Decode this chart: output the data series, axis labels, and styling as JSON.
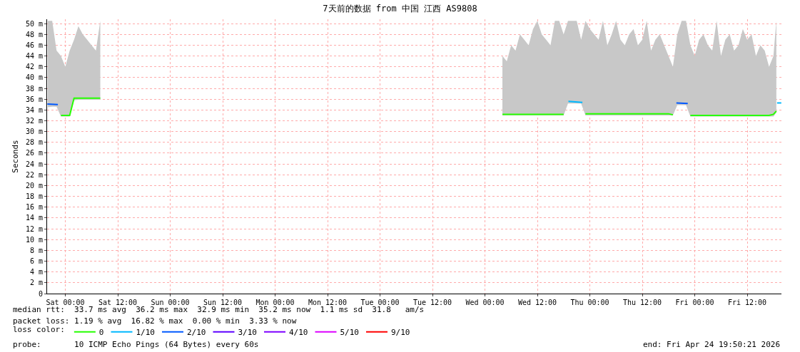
{
  "chart_data": {
    "type": "line",
    "title": "7天前的数据 from 中国 江西 AS9808",
    "ylabel": "Seconds",
    "xlim": [
      "2026-04-17T19:50",
      "2026-04-24T19:50"
    ],
    "ylim": [
      0,
      50.8
    ],
    "xticks": [
      {
        "value": "2026-04-18T00:00",
        "label": "Sat 00:00"
      },
      {
        "value": "2026-04-18T12:00",
        "label": "Sat 12:00"
      },
      {
        "value": "2026-04-19T00:00",
        "label": "Sun 00:00"
      },
      {
        "value": "2026-04-19T12:00",
        "label": "Sun 12:00"
      },
      {
        "value": "2026-04-20T00:00",
        "label": "Mon 00:00"
      },
      {
        "value": "2026-04-20T12:00",
        "label": "Mon 12:00"
      },
      {
        "value": "2026-04-21T00:00",
        "label": "Tue 00:00"
      },
      {
        "value": "2026-04-21T12:00",
        "label": "Tue 12:00"
      },
      {
        "value": "2026-04-22T00:00",
        "label": "Wed 00:00"
      },
      {
        "value": "2026-04-22T12:00",
        "label": "Wed 12:00"
      },
      {
        "value": "2026-04-23T00:00",
        "label": "Thu 00:00"
      },
      {
        "value": "2026-04-23T12:00",
        "label": "Thu 12:00"
      },
      {
        "value": "2026-04-24T00:00",
        "label": "Fri 00:00"
      },
      {
        "value": "2026-04-24T12:00",
        "label": "Fri 12:00"
      }
    ],
    "yticks": [
      0,
      {
        "value": 2,
        "label": "2 m"
      },
      {
        "value": 4,
        "label": "4 m"
      },
      {
        "value": 6,
        "label": "6 m"
      },
      {
        "value": 8,
        "label": "8 m"
      },
      {
        "value": 10,
        "label": "10 m"
      },
      {
        "value": 12,
        "label": "12 m"
      },
      {
        "value": 14,
        "label": "14 m"
      },
      {
        "value": 16,
        "label": "16 m"
      },
      {
        "value": 18,
        "label": "18 m"
      },
      {
        "value": 20,
        "label": "20 m"
      },
      {
        "value": 22,
        "label": "22 m"
      },
      {
        "value": 24,
        "label": "24 m"
      },
      {
        "value": 26,
        "label": "26 m"
      },
      {
        "value": 28,
        "label": "28 m"
      },
      {
        "value": 30,
        "label": "30 m"
      },
      {
        "value": 32,
        "label": "32 m"
      },
      {
        "value": 34,
        "label": "34 m"
      },
      {
        "value": 36,
        "label": "36 m"
      },
      {
        "value": 38,
        "label": "38 m"
      },
      {
        "value": 40,
        "label": "40 m"
      },
      {
        "value": 42,
        "label": "42 m"
      },
      {
        "value": 44,
        "label": "44 m"
      },
      {
        "value": 46,
        "label": "46 m"
      },
      {
        "value": 48,
        "label": "48 m"
      },
      {
        "value": 50,
        "label": "50 m"
      }
    ],
    "grid": true,
    "legend": "bottom",
    "legend_title": "loss color:",
    "marker": "none",
    "line_style": "solid",
    "series": [
      {
        "name": "0",
        "color": "#26ff00",
        "x": [
          "2026-04-17T20:00",
          "2026-04-17T21:00",
          "2026-04-17T22:00",
          "2026-04-17T23:00",
          "2026-04-18T00:00",
          "2026-04-18T01:00",
          "2026-04-18T02:00",
          "2026-04-18T03:00",
          "2026-04-18T04:00",
          "2026-04-18T05:00",
          "2026-04-18T06:00",
          "2026-04-18T07:00",
          "2026-04-18T08:00",
          "2026-04-20T02:00",
          "2026-04-22T04:00",
          "2026-04-22T05:00",
          "2026-04-22T06:00",
          "2026-04-22T07:00",
          "2026-04-22T08:00",
          "2026-04-22T09:00",
          "2026-04-22T10:00",
          "2026-04-22T11:00",
          "2026-04-22T12:00",
          "2026-04-22T13:00",
          "2026-04-22T14:00",
          "2026-04-22T15:00",
          "2026-04-22T16:00",
          "2026-04-22T17:00",
          "2026-04-22T18:00",
          "2026-04-22T19:00",
          "2026-04-22T20:00",
          "2026-04-22T21:00",
          "2026-04-22T22:00",
          "2026-04-22T23:00",
          "2026-04-23T00:00",
          "2026-04-23T01:00",
          "2026-04-23T02:00",
          "2026-04-23T03:00",
          "2026-04-23T04:00",
          "2026-04-23T05:00",
          "2026-04-23T06:00",
          "2026-04-23T07:00",
          "2026-04-23T08:00",
          "2026-04-23T09:00",
          "2026-04-23T10:00",
          "2026-04-23T11:00",
          "2026-04-23T12:00",
          "2026-04-23T13:00",
          "2026-04-23T14:00",
          "2026-04-23T15:00",
          "2026-04-23T16:00",
          "2026-04-23T17:00",
          "2026-04-23T18:00",
          "2026-04-23T19:00",
          "2026-04-23T20:00",
          "2026-04-23T21:00",
          "2026-04-23T22:00",
          "2026-04-23T23:00",
          "2026-04-24T00:00",
          "2026-04-24T01:00",
          "2026-04-24T02:00",
          "2026-04-24T03:00",
          "2026-04-24T04:00",
          "2026-04-24T05:00",
          "2026-04-24T06:00",
          "2026-04-24T07:00",
          "2026-04-24T08:00",
          "2026-04-24T09:00",
          "2026-04-24T10:00",
          "2026-04-24T11:00",
          "2026-04-24T12:00",
          "2026-04-24T13:00",
          "2026-04-24T14:00",
          "2026-04-24T15:00",
          "2026-04-24T16:00",
          "2026-04-24T17:00",
          "2026-04-24T18:00",
          "2026-04-24T18:40"
        ],
        "values": [
          null,
          null,
          null,
          33.0,
          33.0,
          33.0,
          36.2,
          36.2,
          36.2,
          36.2,
          36.2,
          36.2,
          36.2,
          null,
          33.2,
          33.2,
          33.2,
          33.2,
          33.2,
          33.2,
          33.2,
          33.2,
          33.2,
          33.2,
          33.2,
          33.2,
          33.2,
          33.2,
          33.2,
          null,
          null,
          null,
          null,
          33.3,
          33.3,
          33.3,
          33.3,
          33.3,
          33.3,
          33.3,
          33.3,
          33.3,
          33.3,
          33.3,
          33.3,
          33.3,
          33.3,
          33.3,
          33.3,
          33.3,
          33.3,
          33.3,
          33.3,
          33.1,
          null,
          null,
          null,
          33.0,
          33.0,
          33.0,
          33.0,
          33.0,
          33.0,
          33.0,
          33.0,
          33.0,
          33.0,
          33.0,
          33.0,
          33.0,
          33.0,
          33.0,
          33.0,
          33.0,
          33.0,
          33.0,
          33.2,
          33.8
        ],
        "lower": [
          34.5,
          34.6,
          34.6,
          32.8,
          32.8,
          32.8,
          35.8,
          35.9,
          35.9,
          35.9,
          35.9,
          35.9,
          35.9,
          null,
          33.0,
          33.0,
          33.0,
          33.0,
          33.0,
          33.0,
          33.0,
          33.0,
          33.0,
          33.0,
          33.0,
          33.0,
          33.0,
          33.0,
          33.0,
          35.2,
          35.2,
          35.2,
          35.2,
          33.0,
          33.0,
          33.0,
          33.0,
          33.0,
          33.0,
          33.0,
          33.0,
          33.0,
          33.0,
          33.0,
          33.0,
          33.0,
          33.0,
          33.0,
          33.0,
          33.0,
          33.0,
          33.0,
          33.0,
          33.0,
          34.9,
          34.9,
          34.9,
          32.8,
          32.8,
          32.8,
          32.8,
          32.8,
          32.8,
          32.8,
          32.8,
          32.8,
          32.8,
          32.8,
          32.8,
          32.8,
          32.8,
          32.8,
          32.8,
          32.8,
          32.8,
          32.8,
          32.8,
          33.5
        ],
        "upper": [
          50.5,
          50.5,
          45.0,
          44.0,
          42.0,
          45.0,
          47.0,
          49.5,
          48.0,
          47.0,
          46.0,
          45.0,
          50.5,
          null,
          44,
          43,
          46,
          45,
          48,
          47,
          46,
          49,
          50.5,
          48,
          47,
          46,
          50.5,
          50.5,
          48,
          50.5,
          50.5,
          50.5,
          47,
          50.5,
          49,
          48,
          47,
          50.5,
          46,
          48,
          50.5,
          47,
          46,
          48,
          49,
          46,
          47,
          50.5,
          45,
          47,
          48,
          46,
          44,
          42,
          48,
          50.5,
          50.5,
          46,
          44,
          47,
          48,
          46,
          45,
          50.5,
          44,
          47,
          48,
          45,
          46,
          49,
          47,
          48,
          44,
          46,
          45,
          42,
          44,
          50.5
        ]
      },
      {
        "name": "1/10",
        "color": "#00b8ff",
        "x": [
          "2026-04-22T19:06",
          "2026-04-22T22:18",
          "2026-04-23T20:00",
          "2026-04-24T18:50",
          "2026-04-24T19:48"
        ],
        "values": [
          35.6,
          35.4,
          null,
          35.3,
          35.3
        ]
      },
      {
        "name": "2/10",
        "color": "#0059ff",
        "x": [
          "2026-04-17T19:54",
          "2026-04-17T22:18",
          "2026-04-20T02:00",
          "2026-04-23T19:48",
          "2026-04-23T22:24"
        ],
        "values": [
          35.1,
          35.0,
          null,
          35.3,
          35.2
        ]
      },
      {
        "name": "3/10",
        "color": "#5e00ff"
      },
      {
        "name": "4/10",
        "color": "#7e00ff"
      },
      {
        "name": "5/10",
        "color": "#dd00ff"
      },
      {
        "name": "9/10",
        "color": "#ff0000"
      }
    ],
    "annotations": [
      "median rtt:  33.7 ms avg  36.2 ms max  32.9 ms min  35.2 ms now  1.1 ms sd  31.8   am/s",
      "packet loss: 1.19 % avg  16.82 % max  0.00 % min  3.33 % now",
      "probe:       10 ICMP Echo Pings (64 Bytes) every 60s",
      "end: Fri Apr 24 19:50:21 2026"
    ]
  }
}
